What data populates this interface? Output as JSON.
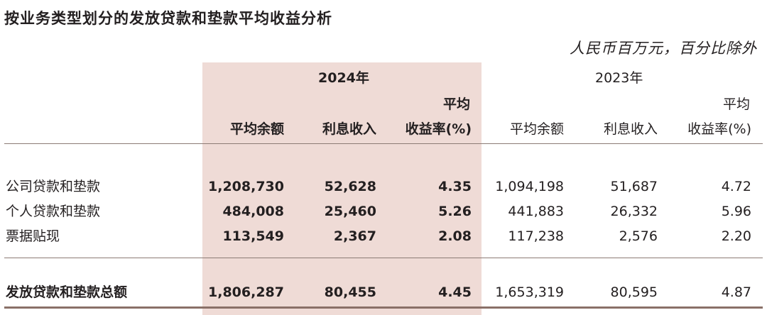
{
  "title": "按业务类型划分的发放贷款和垫款平均收益分析",
  "unit": "人民币百万元，百分比除外",
  "years": {
    "y2024": "2024年",
    "y2023": "2023年"
  },
  "headers": {
    "avg_balance": "平均余额",
    "interest_income": "利息收入",
    "yield_top": "平均",
    "yield_bottom": "收益率(%)"
  },
  "rows": [
    {
      "label": "公司贷款和垫款",
      "v2024": [
        "1,208,730",
        "52,628",
        "4.35"
      ],
      "v2023": [
        "1,094,198",
        "51,687",
        "4.72"
      ]
    },
    {
      "label": "个人贷款和垫款",
      "v2024": [
        "484,008",
        "25,460",
        "5.26"
      ],
      "v2023": [
        "441,883",
        "26,332",
        "5.96"
      ]
    },
    {
      "label": "票据贴现",
      "v2024": [
        "113,549",
        "2,367",
        "2.08"
      ],
      "v2023": [
        "117,238",
        "2,576",
        "2.20"
      ]
    }
  ],
  "total": {
    "label": "发放贷款和垫款总额",
    "v2024": [
      "1,806,287",
      "80,455",
      "4.45"
    ],
    "v2023": [
      "1,653,319",
      "80,595",
      "4.87"
    ]
  }
}
